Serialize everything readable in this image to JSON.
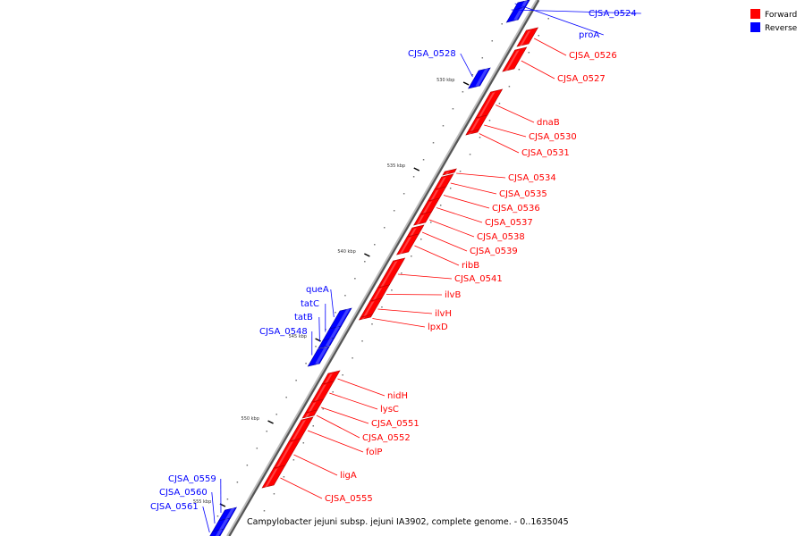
{
  "caption": "Campylobacter jejuni subsp. jejuni IA3902, complete genome. - 0..1635045",
  "legend": [
    {
      "name": "Forward",
      "color": "#ff0000"
    },
    {
      "name": "Reverse",
      "color": "#0000ff"
    }
  ],
  "colors": {
    "forward": "#ff0000",
    "forward_dark": "#b00000",
    "reverse": "#0000ff",
    "reverse_dark": "#0000a0",
    "backbone": "#999999"
  },
  "ticks": [
    {
      "label": "530 kbp"
    },
    {
      "label": "535 kbp"
    },
    {
      "label": "540 kbp"
    },
    {
      "label": "545 kbp"
    },
    {
      "label": "550 kbp"
    },
    {
      "label": "555 kbp"
    }
  ],
  "genes": [
    {
      "name": "CJSA_0524",
      "strand": "reverse"
    },
    {
      "name": "proA",
      "strand": "reverse"
    },
    {
      "name": "CJSA_0526",
      "strand": "forward"
    },
    {
      "name": "CJSA_0527",
      "strand": "forward"
    },
    {
      "name": "CJSA_0528",
      "strand": "reverse"
    },
    {
      "name": "dnaB",
      "strand": "forward"
    },
    {
      "name": "CJSA_0530",
      "strand": "forward"
    },
    {
      "name": "CJSA_0531",
      "strand": "forward"
    },
    {
      "name": "CJSA_0534",
      "strand": "forward"
    },
    {
      "name": "CJSA_0535",
      "strand": "forward"
    },
    {
      "name": "CJSA_0536",
      "strand": "forward"
    },
    {
      "name": "CJSA_0537",
      "strand": "forward"
    },
    {
      "name": "CJSA_0538",
      "strand": "forward"
    },
    {
      "name": "CJSA_0539",
      "strand": "forward"
    },
    {
      "name": "ribB",
      "strand": "forward"
    },
    {
      "name": "CJSA_0541",
      "strand": "forward"
    },
    {
      "name": "ilvB",
      "strand": "forward"
    },
    {
      "name": "ilvH",
      "strand": "forward"
    },
    {
      "name": "lpxD",
      "strand": "forward"
    },
    {
      "name": "queA",
      "strand": "reverse"
    },
    {
      "name": "tatC",
      "strand": "reverse"
    },
    {
      "name": "tatB",
      "strand": "reverse"
    },
    {
      "name": "CJSA_0548",
      "strand": "reverse"
    },
    {
      "name": "nidH",
      "strand": "forward"
    },
    {
      "name": "lysC",
      "strand": "forward"
    },
    {
      "name": "CJSA_0551",
      "strand": "forward"
    },
    {
      "name": "CJSA_0552",
      "strand": "forward"
    },
    {
      "name": "folP",
      "strand": "forward"
    },
    {
      "name": "ligA",
      "strand": "forward"
    },
    {
      "name": "CJSA_0555",
      "strand": "forward"
    },
    {
      "name": "CJSA_0559",
      "strand": "reverse"
    },
    {
      "name": "CJSA_0560",
      "strand": "reverse"
    },
    {
      "name": "CJSA_0561",
      "strand": "reverse"
    }
  ]
}
